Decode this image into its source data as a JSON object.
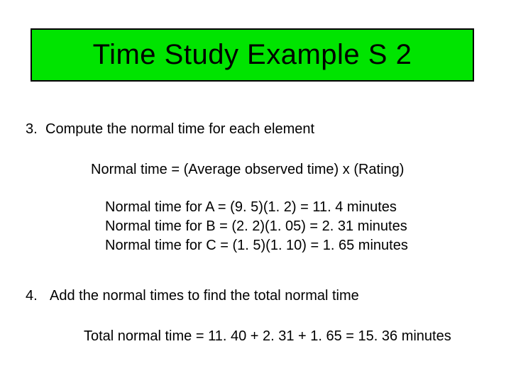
{
  "title": {
    "text": "Time Study Example S 2",
    "background_color": "#00e400",
    "border_color": "#000000",
    "font_size": 40
  },
  "body_font_size": 20,
  "background_color": "#ffffff",
  "text_color": "#000000",
  "step3": {
    "number": "3.",
    "text": "Compute the normal time for each element",
    "formula": "Normal time = (Average observed time) x (Rating)",
    "calculations": [
      "Normal time for A = (9. 5)(1. 2) = 11. 4 minutes",
      "Normal time for B = (2. 2)(1. 05) = 2. 31 minutes",
      "Normal time for C = (1. 5)(1. 10) = 1. 65 minutes"
    ]
  },
  "step4": {
    "number": "4.",
    "text": "Add the normal times to find the total normal time",
    "total": "Total normal time = 11. 40 + 2. 31 + 1. 65 = 15. 36 minutes"
  }
}
